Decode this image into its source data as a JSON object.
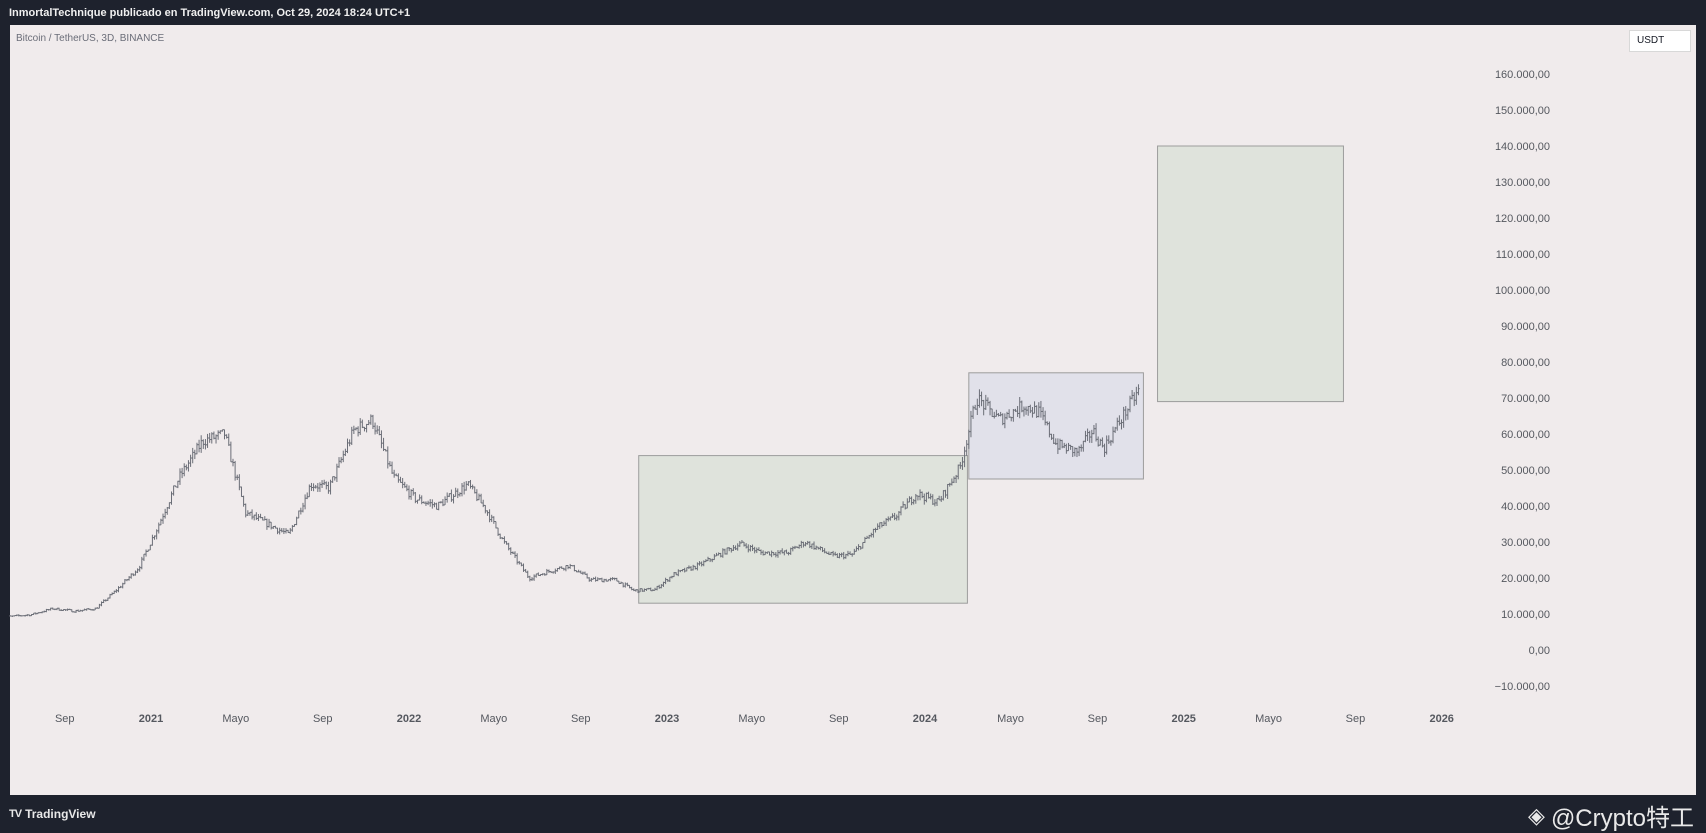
{
  "header": {
    "published_by": "InmortalTechnique publicado en TradingView.com, Oct 29, 2024 18:24 UTC+1"
  },
  "symbol_label": "Bitcoin / TetherUS, 3D, BINANCE",
  "currency_badge": "USDT",
  "footer": {
    "logo_text": "TradingView",
    "logo_icon": "tv-logo-icon",
    "watermark": "@Crypto特工",
    "watermark_icon": "binance-diamond-icon"
  },
  "colors": {
    "panel_bg": "#f0ebec",
    "candle": "#6b6e77",
    "green_box_fill": "#dfe3dc",
    "blue_box_fill": "#e1e1ea",
    "box_stroke": "#9c9c9c",
    "axis_text": "#55585f"
  },
  "chart_data": {
    "type": "candlestick",
    "ylim": [
      -10000,
      160000
    ],
    "y_tick_labels": [
      "160.000,00",
      "150.000,00",
      "140.000,00",
      "130.000,00",
      "120.000,00",
      "110.000,00",
      "100.000,00",
      "90.000,00",
      "80.000,00",
      "70.000,00",
      "60.000,00",
      "50.000,00",
      "40.000,00",
      "30.000,00",
      "20.000,00",
      "10.000,00",
      "0,00",
      "−10.000,00"
    ],
    "y_tick_values": [
      160000,
      150000,
      140000,
      130000,
      120000,
      110000,
      100000,
      90000,
      80000,
      70000,
      60000,
      50000,
      40000,
      30000,
      20000,
      10000,
      0,
      -10000
    ],
    "x_tick_labels": [
      {
        "label": "Sep",
        "date": "2020-09-01"
      },
      {
        "label": "2021",
        "date": "2021-01-01"
      },
      {
        "label": "Mayo",
        "date": "2021-05-01"
      },
      {
        "label": "Sep",
        "date": "2021-09-01"
      },
      {
        "label": "2022",
        "date": "2022-01-01"
      },
      {
        "label": "Mayo",
        "date": "2022-05-01"
      },
      {
        "label": "Sep",
        "date": "2022-09-01"
      },
      {
        "label": "2023",
        "date": "2023-01-01"
      },
      {
        "label": "Mayo",
        "date": "2023-05-01"
      },
      {
        "label": "Sep",
        "date": "2023-09-01"
      },
      {
        "label": "2024",
        "date": "2024-01-01"
      },
      {
        "label": "Mayo",
        "date": "2024-05-01"
      },
      {
        "label": "Sep",
        "date": "2024-09-01"
      },
      {
        "label": "2025",
        "date": "2025-01-01"
      },
      {
        "label": "Mayo",
        "date": "2025-05-01"
      },
      {
        "label": "Sep",
        "date": "2025-09-01"
      },
      {
        "label": "2026",
        "date": "2026-01-01"
      }
    ],
    "price_series": {
      "dates": [
        "2020-06-15",
        "2020-07-15",
        "2020-08-15",
        "2020-09-15",
        "2020-10-15",
        "2020-11-15",
        "2020-12-15",
        "2021-01-10",
        "2021-02-10",
        "2021-03-15",
        "2021-04-15",
        "2021-05-15",
        "2021-06-15",
        "2021-07-15",
        "2021-08-15",
        "2021-09-10",
        "2021-10-15",
        "2021-11-10",
        "2021-12-10",
        "2022-01-10",
        "2022-02-10",
        "2022-03-25",
        "2022-04-20",
        "2022-05-15",
        "2022-06-20",
        "2022-07-20",
        "2022-08-15",
        "2022-09-15",
        "2022-10-20",
        "2022-11-15",
        "2022-12-15",
        "2023-01-10",
        "2023-02-15",
        "2023-03-20",
        "2023-04-15",
        "2023-05-15",
        "2023-06-20",
        "2023-07-15",
        "2023-08-25",
        "2023-09-20",
        "2023-10-25",
        "2023-11-20",
        "2023-12-20",
        "2024-01-20",
        "2024-02-20",
        "2024-03-14",
        "2024-04-15",
        "2024-05-20",
        "2024-06-10",
        "2024-07-05",
        "2024-08-05",
        "2024-08-25",
        "2024-09-10",
        "2024-10-01",
        "2024-10-29"
      ],
      "close": [
        9300,
        9800,
        11500,
        10800,
        11500,
        17000,
        23000,
        34000,
        48000,
        58000,
        60000,
        38000,
        35000,
        32000,
        46000,
        45000,
        61000,
        64000,
        48000,
        42000,
        40000,
        46000,
        39000,
        30000,
        20000,
        22000,
        23500,
        19500,
        19500,
        16500,
        16800,
        21000,
        23500,
        27000,
        29500,
        27000,
        27000,
        30000,
        26000,
        26500,
        34000,
        37000,
        43500,
        41000,
        51000,
        70000,
        64000,
        68000,
        66000,
        57000,
        55000,
        61000,
        56000,
        63000,
        72000
      ]
    },
    "range_boxes": [
      {
        "label": "",
        "start": "2022-11-22",
        "end": "2024-03-01",
        "low": 13000,
        "high": 54000,
        "fill": "green"
      },
      {
        "label": "",
        "start": "2024-03-03",
        "end": "2024-11-05",
        "low": 47500,
        "high": 77000,
        "fill": "blue"
      },
      {
        "label": "",
        "start": "2024-11-25",
        "end": "2025-08-15",
        "low": 69000,
        "high": 140000,
        "fill": "green"
      }
    ],
    "grid": false
  }
}
